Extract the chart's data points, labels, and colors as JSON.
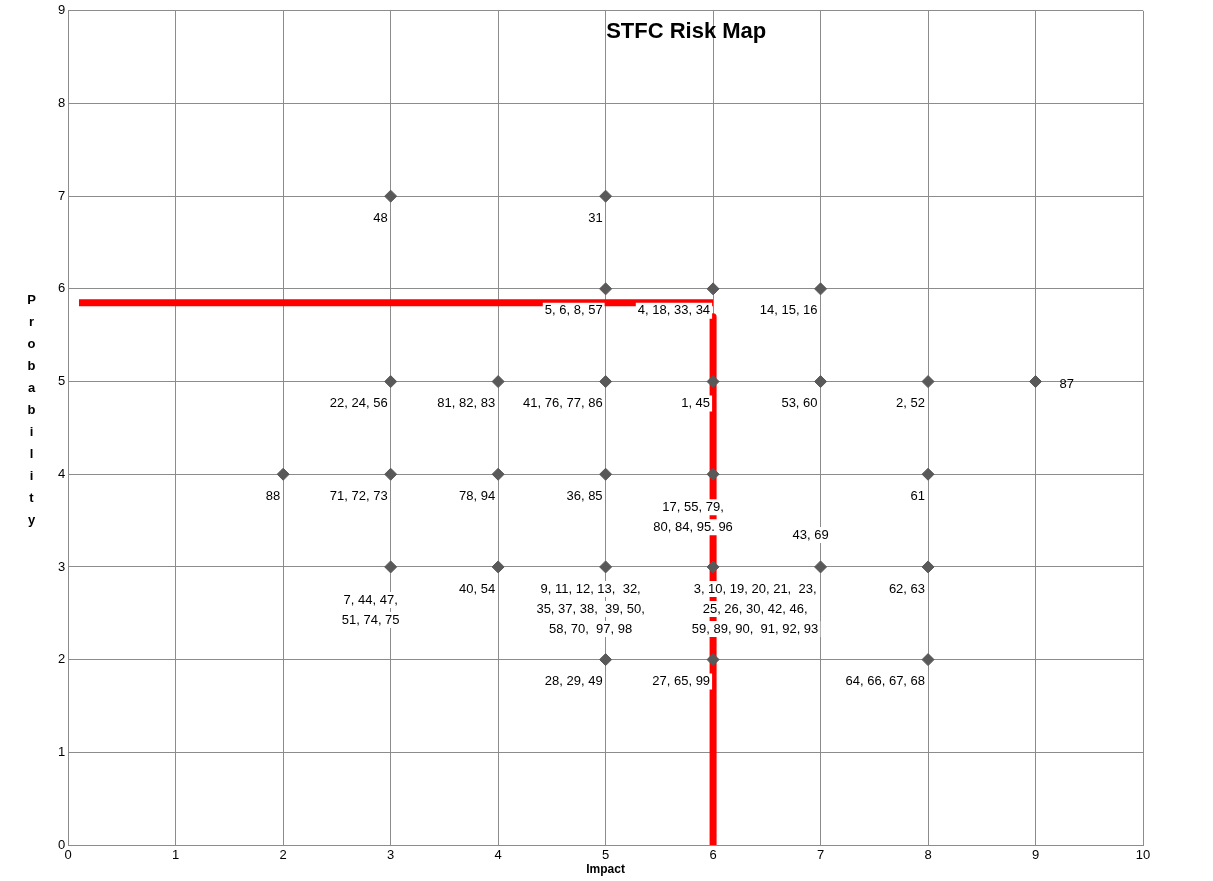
{
  "chart_data": {
    "type": "scatter",
    "title": "STFC Risk Map",
    "xlabel": "Impact",
    "ylabel": "Probability",
    "xlim": [
      0,
      10
    ],
    "ylim": [
      0,
      9
    ],
    "xticks": [
      0,
      1,
      2,
      3,
      4,
      5,
      6,
      7,
      8,
      9,
      10
    ],
    "yticks": [
      0,
      1,
      2,
      3,
      4,
      5,
      6,
      7,
      8,
      9
    ],
    "grid": true,
    "marker": "diamond",
    "legend": false,
    "series": [
      {
        "type": "scatter",
        "color": "#595959",
        "x": [
          3,
          5,
          5,
          6,
          7,
          3,
          4,
          5,
          6,
          7,
          8,
          9,
          2,
          3,
          4,
          5,
          6,
          8,
          3,
          4,
          5,
          6,
          7,
          8,
          5,
          6,
          8
        ],
        "values": [
          7,
          7,
          6,
          6,
          6,
          5,
          5,
          5,
          5,
          5,
          5,
          5,
          4,
          4,
          4,
          4,
          4,
          4,
          3,
          3,
          3,
          3,
          3,
          3,
          2,
          2,
          2
        ]
      },
      {
        "type": "line",
        "color": "#ff0000",
        "marker": "none",
        "x": [
          0.1,
          6
        ],
        "values": [
          5.85,
          5.85
        ]
      },
      {
        "type": "line",
        "color": "#ff0000",
        "marker": "none",
        "x": [
          6,
          6
        ],
        "values": [
          5.7,
          0
        ]
      }
    ],
    "annotations": [
      {
        "text": "48",
        "x": 3,
        "y": 7
      },
      {
        "text": "31",
        "x": 5,
        "y": 7
      },
      {
        "text": "5, 6, 8, 57",
        "x": 5,
        "y": 6
      },
      {
        "text": "4, 18, 33, 34",
        "x": 6,
        "y": 6
      },
      {
        "text": "14, 15, 16",
        "x": 7,
        "y": 6
      },
      {
        "text": "22, 24, 56",
        "x": 3,
        "y": 5
      },
      {
        "text": "81, 82, 83",
        "x": 4,
        "y": 5
      },
      {
        "text": "41, 76, 77, 86",
        "x": 5,
        "y": 5
      },
      {
        "text": "1, 45",
        "x": 6,
        "y": 5
      },
      {
        "text": "53, 60",
        "x": 7,
        "y": 5
      },
      {
        "text": "2, 52",
        "x": 8,
        "y": 5
      },
      {
        "text": "87",
        "x": 9,
        "y": 5
      },
      {
        "text": "88",
        "x": 2,
        "y": 4
      },
      {
        "text": "71, 72, 73",
        "x": 3,
        "y": 4
      },
      {
        "text": "78, 94",
        "x": 4,
        "y": 4
      },
      {
        "text": "36, 85",
        "x": 5,
        "y": 4
      },
      {
        "text": "17, 55, 79,\n80, 84, 95. 96",
        "x": 6,
        "y": 4
      },
      {
        "text": "61",
        "x": 8,
        "y": 4
      },
      {
        "text": "7, 44, 47,\n51, 74, 75",
        "x": 3,
        "y": 3
      },
      {
        "text": "40, 54",
        "x": 4,
        "y": 3
      },
      {
        "text": "9, 11, 12, 13,  32,\n35, 37, 38,  39, 50,\n58, 70,  97, 98",
        "x": 5,
        "y": 3
      },
      {
        "text": "3, 10, 19, 20, 21,  23,\n25, 26, 30, 42, 46,\n59, 89, 90,  91, 92, 93",
        "x": 6,
        "y": 3
      },
      {
        "text": "43, 69",
        "x": 7,
        "y": 3
      },
      {
        "text": "62, 63",
        "x": 8,
        "y": 3
      },
      {
        "text": "28, 29, 49",
        "x": 5,
        "y": 2
      },
      {
        "text": "27, 65, 99",
        "x": 6,
        "y": 2
      },
      {
        "text": "64, 66, 67, 68",
        "x": 8,
        "y": 2
      }
    ]
  }
}
